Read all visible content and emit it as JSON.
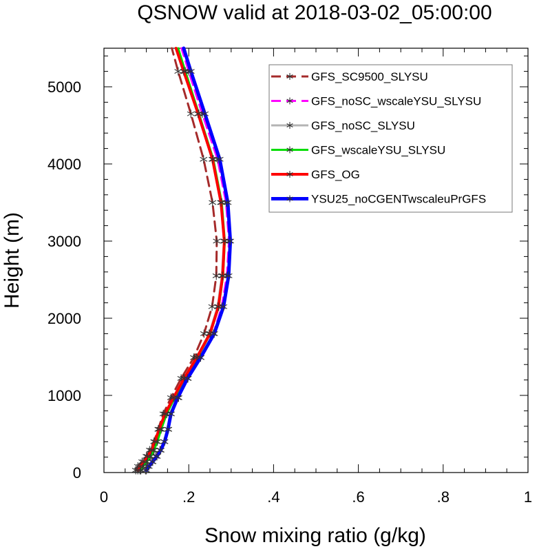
{
  "chart_data": {
    "type": "line",
    "title": "QSNOW valid at 2018-03-02_05:00:00",
    "xlabel": "Snow mixing ratio (g/kg)",
    "ylabel": "Height (m)",
    "xlim": [
      0,
      1
    ],
    "ylim": [
      0,
      5500
    ],
    "x_ticks": [
      {
        "value": 0,
        "label": "0"
      },
      {
        "value": 0.2,
        "label": ".2"
      },
      {
        "value": 0.4,
        "label": ".4"
      },
      {
        "value": 0.6,
        "label": ".6"
      },
      {
        "value": 0.8,
        "label": ".8"
      },
      {
        "value": 1,
        "label": "1"
      }
    ],
    "y_ticks": [
      {
        "value": 0,
        "label": "0"
      },
      {
        "value": 1000,
        "label": "1000"
      },
      {
        "value": 2000,
        "label": "2000"
      },
      {
        "value": 3000,
        "label": "3000"
      },
      {
        "value": 4000,
        "label": "4000"
      },
      {
        "value": 5000,
        "label": "5000"
      }
    ],
    "legend_position": "top-right",
    "y": [
      30,
      80,
      140,
      210,
      290,
      400,
      560,
      760,
      970,
      1220,
      1490,
      1800,
      2150,
      2550,
      3000,
      3500,
      4060,
      4650,
      5200,
      5500
    ],
    "series": [
      {
        "name": "GFS_SC9500_SLYSU",
        "color": "#a52a2a",
        "dash": "14,8",
        "width": 3,
        "values": [
          0.075,
          0.08,
          0.09,
          0.1,
          0.108,
          0.118,
          0.128,
          0.14,
          0.158,
          0.182,
          0.212,
          0.236,
          0.255,
          0.265,
          0.266,
          0.256,
          0.235,
          0.205,
          0.175,
          0.16
        ]
      },
      {
        "name": "GFS_noSC_wscaleYSU_SLYSU",
        "color": "#ff00ff",
        "dash": "14,8",
        "width": 3,
        "values": [
          0.098,
          0.103,
          0.113,
          0.122,
          0.132,
          0.142,
          0.152,
          0.158,
          0.176,
          0.198,
          0.228,
          0.258,
          0.278,
          0.29,
          0.295,
          0.288,
          0.268,
          0.232,
          0.2,
          0.183
        ]
      },
      {
        "name": "GFS_noSC_SLYSU",
        "color": "#b4b4b4",
        "dash": "",
        "width": 3,
        "values": [
          0.085,
          0.09,
          0.099,
          0.108,
          0.116,
          0.124,
          0.133,
          0.146,
          0.165,
          0.188,
          0.218,
          0.248,
          0.268,
          0.278,
          0.283,
          0.276,
          0.256,
          0.222,
          0.19,
          0.173
        ]
      },
      {
        "name": "GFS_wscaleYSU_SLYSU",
        "color": "#00dd00",
        "dash": "",
        "width": 3,
        "values": [
          0.087,
          0.092,
          0.101,
          0.11,
          0.118,
          0.126,
          0.135,
          0.148,
          0.167,
          0.191,
          0.221,
          0.251,
          0.271,
          0.281,
          0.285,
          0.278,
          0.258,
          0.224,
          0.192,
          0.175
        ]
      },
      {
        "name": "GFS_OG",
        "color": "#ff0000",
        "dash": "",
        "width": 4,
        "values": [
          0.08,
          0.085,
          0.094,
          0.103,
          0.112,
          0.12,
          0.13,
          0.144,
          0.164,
          0.189,
          0.219,
          0.25,
          0.27,
          0.28,
          0.284,
          0.276,
          0.256,
          0.222,
          0.188,
          0.17
        ]
      },
      {
        "name": "YSU25_noCGENTwscaleuPrGFS",
        "color": "#0000ff",
        "dash": "",
        "width": 5,
        "values": [
          0.1,
          0.106,
          0.115,
          0.125,
          0.134,
          0.143,
          0.151,
          0.158,
          0.174,
          0.197,
          0.228,
          0.26,
          0.282,
          0.294,
          0.298,
          0.292,
          0.273,
          0.238,
          0.205,
          0.188
        ]
      }
    ]
  }
}
